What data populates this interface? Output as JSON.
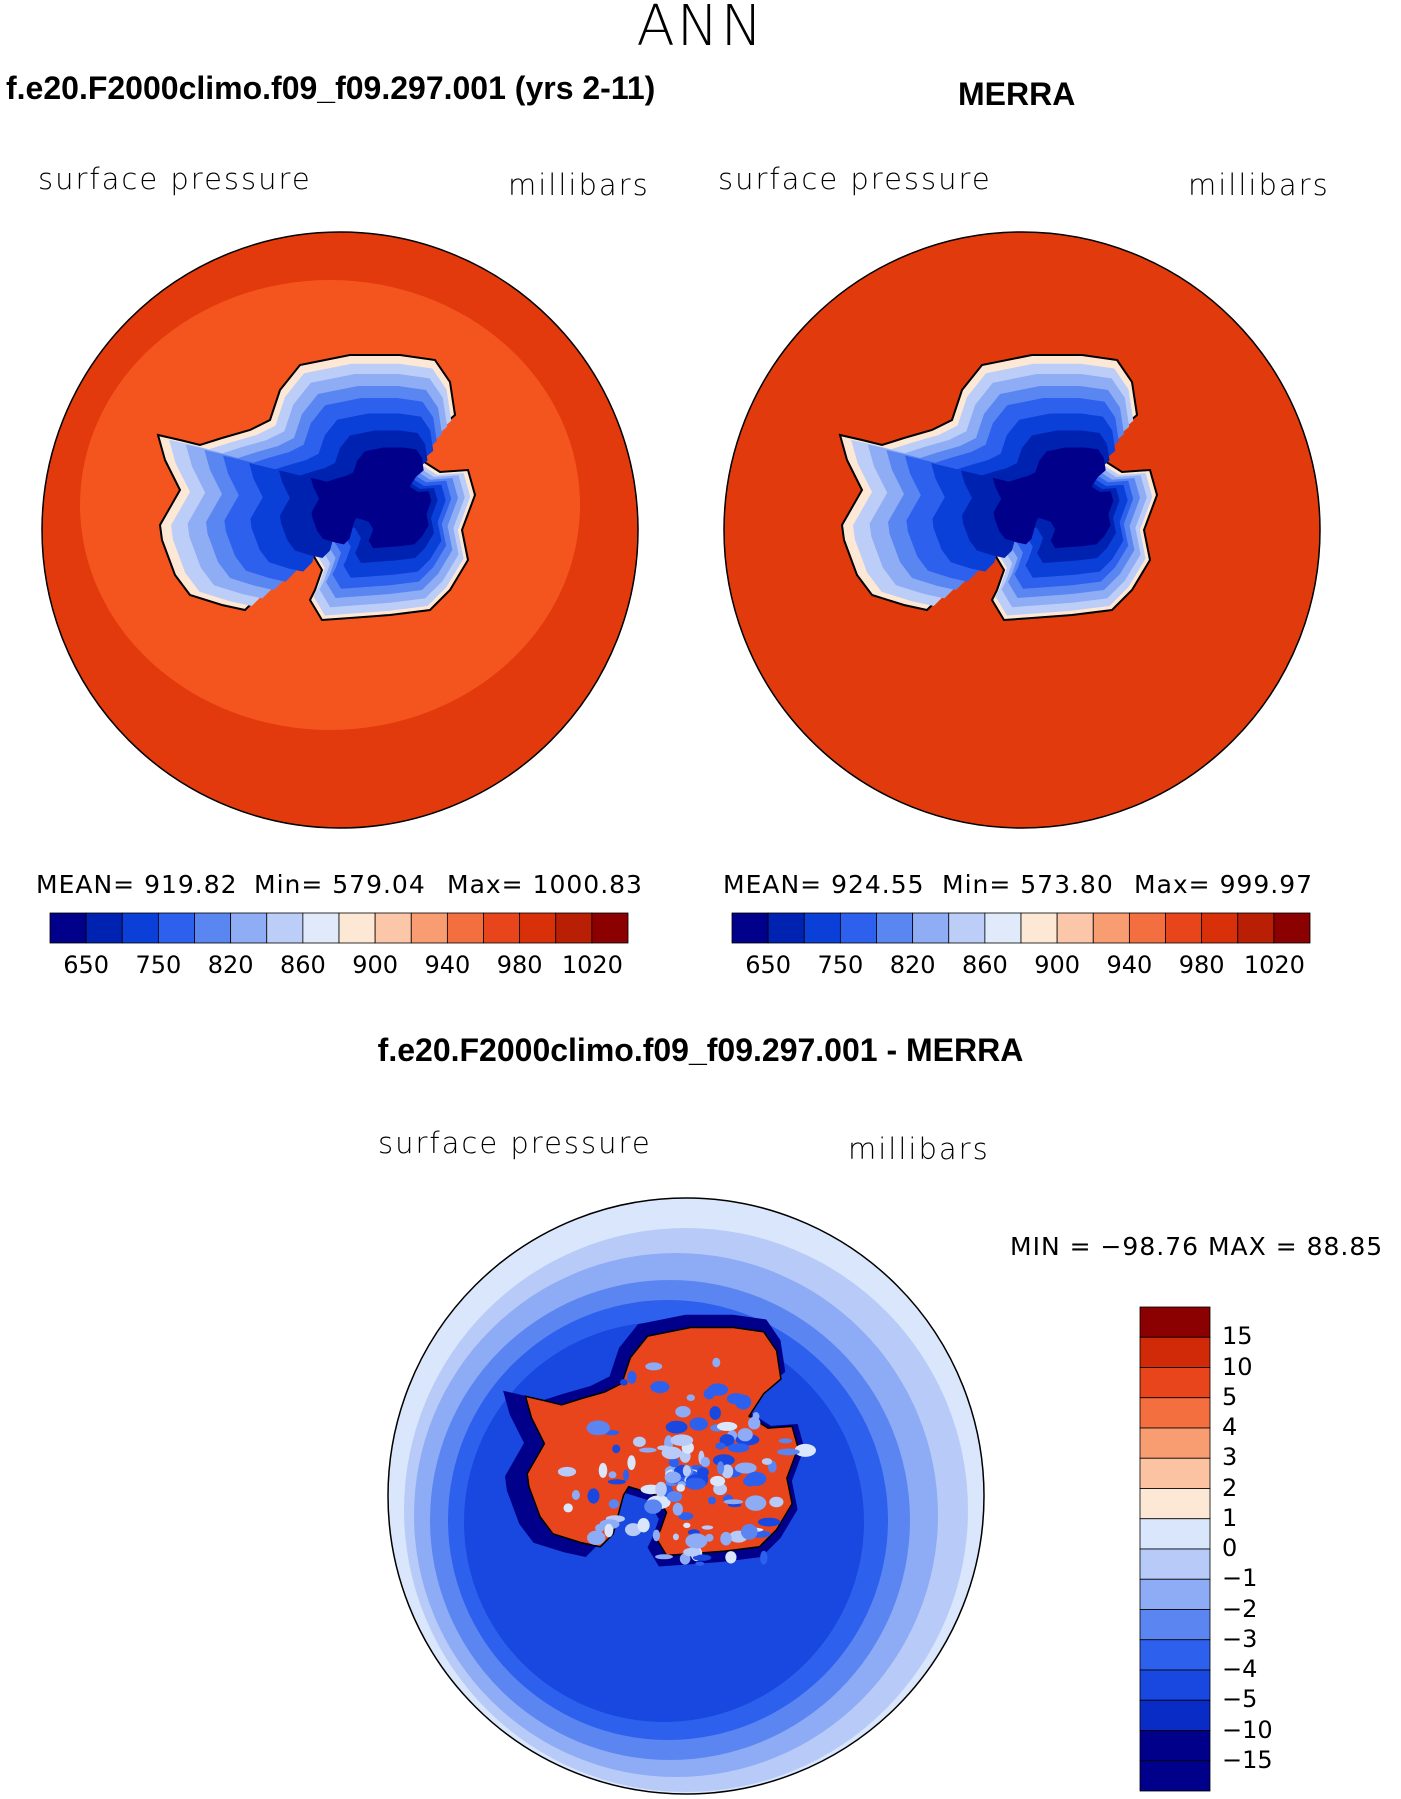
{
  "figure": {
    "season": "ANN",
    "panels": [
      {
        "title": "f.e20.F2000climo.f09_f09.297.001 (yrs 2-11)",
        "left_label": "surface pressure",
        "right_label": "millibars",
        "stats": {
          "mean": "MEAN= 919.82",
          "min": "Min= 579.04",
          "max": "Max= 1000.83"
        }
      },
      {
        "title": "MERRA",
        "left_label": "surface pressure",
        "right_label": "millibars",
        "stats": {
          "mean": "MEAN= 924.55",
          "min": "Min= 573.80",
          "max": "Max= 999.97"
        }
      },
      {
        "title": "f.e20.F2000climo.f09_f09.297.001 - MERRA",
        "left_label": "surface pressure",
        "right_label": "millibars",
        "stats": {
          "minmax": "MIN = −98.76 MAX =   88.85"
        }
      }
    ]
  },
  "colors": {
    "abs_scale": [
      "#00008a",
      "#0022b0",
      "#0a3fd8",
      "#2e60ee",
      "#5a86f2",
      "#8fadf5",
      "#bccef8",
      "#e0eafb",
      "#fde8d6",
      "#fbc7a8",
      "#f89c72",
      "#f36f40",
      "#e8451c",
      "#d8310a",
      "#b81f04",
      "#8b0000"
    ],
    "diff_scale": [
      "#00008a",
      "#0a2cc6",
      "#1848e0",
      "#2e60ee",
      "#5b86f2",
      "#8eacf5",
      "#b8cbf8",
      "#d9e6fb",
      "#fde8d6",
      "#fbc3a2",
      "#f89c72",
      "#f36f40",
      "#e8451c",
      "#d02a08",
      "#8b0000"
    ],
    "ocean_model": "#e23a0c",
    "ocean_model_ring": "#f4551e",
    "ocean_merra": "#e13b0d",
    "land_outline": "#000000"
  },
  "chart_data": [
    {
      "type": "heatmap",
      "title": "f.e20.F2000climo.f09_f09.297.001 (yrs 2-11)",
      "variable": "surface pressure",
      "units": "millibars",
      "projection": "south polar stereographic",
      "mean": 919.82,
      "min": 579.04,
      "max": 1000.83,
      "colorbar_ticks": [
        "650",
        "750",
        "820",
        "860",
        "900",
        "940",
        "980",
        "1020"
      ]
    },
    {
      "type": "heatmap",
      "title": "MERRA",
      "variable": "surface pressure",
      "units": "millibars",
      "projection": "south polar stereographic",
      "mean": 924.55,
      "min": 573.8,
      "max": 999.97,
      "colorbar_ticks": [
        "650",
        "750",
        "820",
        "860",
        "900",
        "940",
        "980",
        "1020"
      ]
    },
    {
      "type": "heatmap",
      "title": "f.e20.F2000climo.f09_f09.297.001 - MERRA",
      "variable": "surface pressure",
      "units": "millibars",
      "projection": "south polar stereographic",
      "min": -98.76,
      "max": 88.85,
      "colorbar_ticks": [
        "15",
        "10",
        "5",
        "4",
        "3",
        "2",
        "1",
        "0",
        "−1",
        "−2",
        "−3",
        "−4",
        "−5",
        "−10",
        "−15"
      ]
    }
  ]
}
